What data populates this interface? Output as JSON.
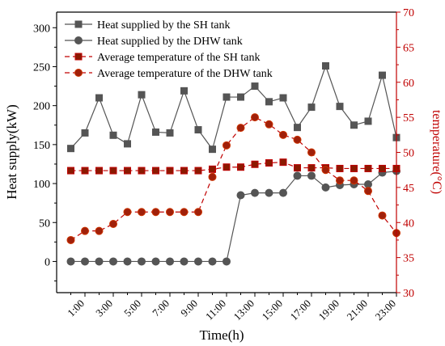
{
  "chart_data": {
    "type": "line",
    "x": [
      0,
      1,
      2,
      3,
      4,
      5,
      6,
      7,
      8,
      9,
      10,
      11,
      12,
      13,
      14,
      15,
      16,
      17,
      18,
      19,
      20,
      21,
      22,
      23
    ],
    "x_ticks": [
      1,
      3,
      5,
      7,
      9,
      11,
      13,
      15,
      17,
      19,
      21,
      23
    ],
    "x_tick_labels": [
      "1:00",
      "3:00",
      "5:00",
      "7:00",
      "9:00",
      "11:00",
      "13:00",
      "15:00",
      "17:00",
      "19:00",
      "21:00",
      "23:00"
    ],
    "xlim": [
      -1,
      23
    ],
    "xlabel": "Time(h)",
    "ylabel_left": "Heat supply(kW)",
    "ylim_left": [
      -40,
      320
    ],
    "yticks_left": [
      0,
      50,
      100,
      150,
      200,
      250,
      300
    ],
    "ylabel_right": "temperature(°C)",
    "ylim_right": [
      30,
      70
    ],
    "yticks_right": [
      30,
      35,
      40,
      45,
      50,
      55,
      60,
      65,
      70
    ],
    "legend_position": "top-left",
    "colors": {
      "left_axis": "#000000",
      "right_axis": "#c00000",
      "sh_heat": "#555555",
      "dhw_heat": "#555555",
      "sh_temp": "#c00000",
      "dhw_temp": "#c00000",
      "dhw_temp_fill": "#cc3300"
    },
    "series": [
      {
        "name": "Heat supplied by the SH tank",
        "axis": "left",
        "style": "solid",
        "marker": "square",
        "values": [
          145,
          165,
          210,
          162,
          151,
          214,
          166,
          165,
          219,
          169,
          144,
          211,
          211,
          225,
          205,
          210,
          172,
          198,
          251,
          199,
          175,
          180,
          239,
          159
        ]
      },
      {
        "name": "Heat supplied by the DHW tank",
        "axis": "left",
        "style": "solid",
        "marker": "circle",
        "values": [
          0,
          0,
          0,
          0,
          0,
          0,
          0,
          0,
          0,
          0,
          0,
          0,
          85,
          88,
          88,
          88,
          110,
          110,
          95,
          98,
          99,
          99,
          114,
          116
        ]
      },
      {
        "name": "Average temperature of the SH tank",
        "axis": "right",
        "style": "dashed",
        "marker": "square",
        "values": [
          47.4,
          47.4,
          47.4,
          47.4,
          47.4,
          47.4,
          47.4,
          47.4,
          47.4,
          47.4,
          47.6,
          47.9,
          47.9,
          48.3,
          48.5,
          48.6,
          47.8,
          47.8,
          47.8,
          47.7,
          47.7,
          47.7,
          47.7,
          47.7
        ]
      },
      {
        "name": "Average temperature of the DHW tank",
        "axis": "right",
        "style": "dashed",
        "marker": "circle",
        "values": [
          37.5,
          38.8,
          38.8,
          39.8,
          41.5,
          41.5,
          41.5,
          41.5,
          41.5,
          41.5,
          46.5,
          51.0,
          53.5,
          55.0,
          54.0,
          52.5,
          51.8,
          50.0,
          47.5,
          46.0,
          46.0,
          44.5,
          41.0,
          38.5
        ]
      }
    ]
  }
}
